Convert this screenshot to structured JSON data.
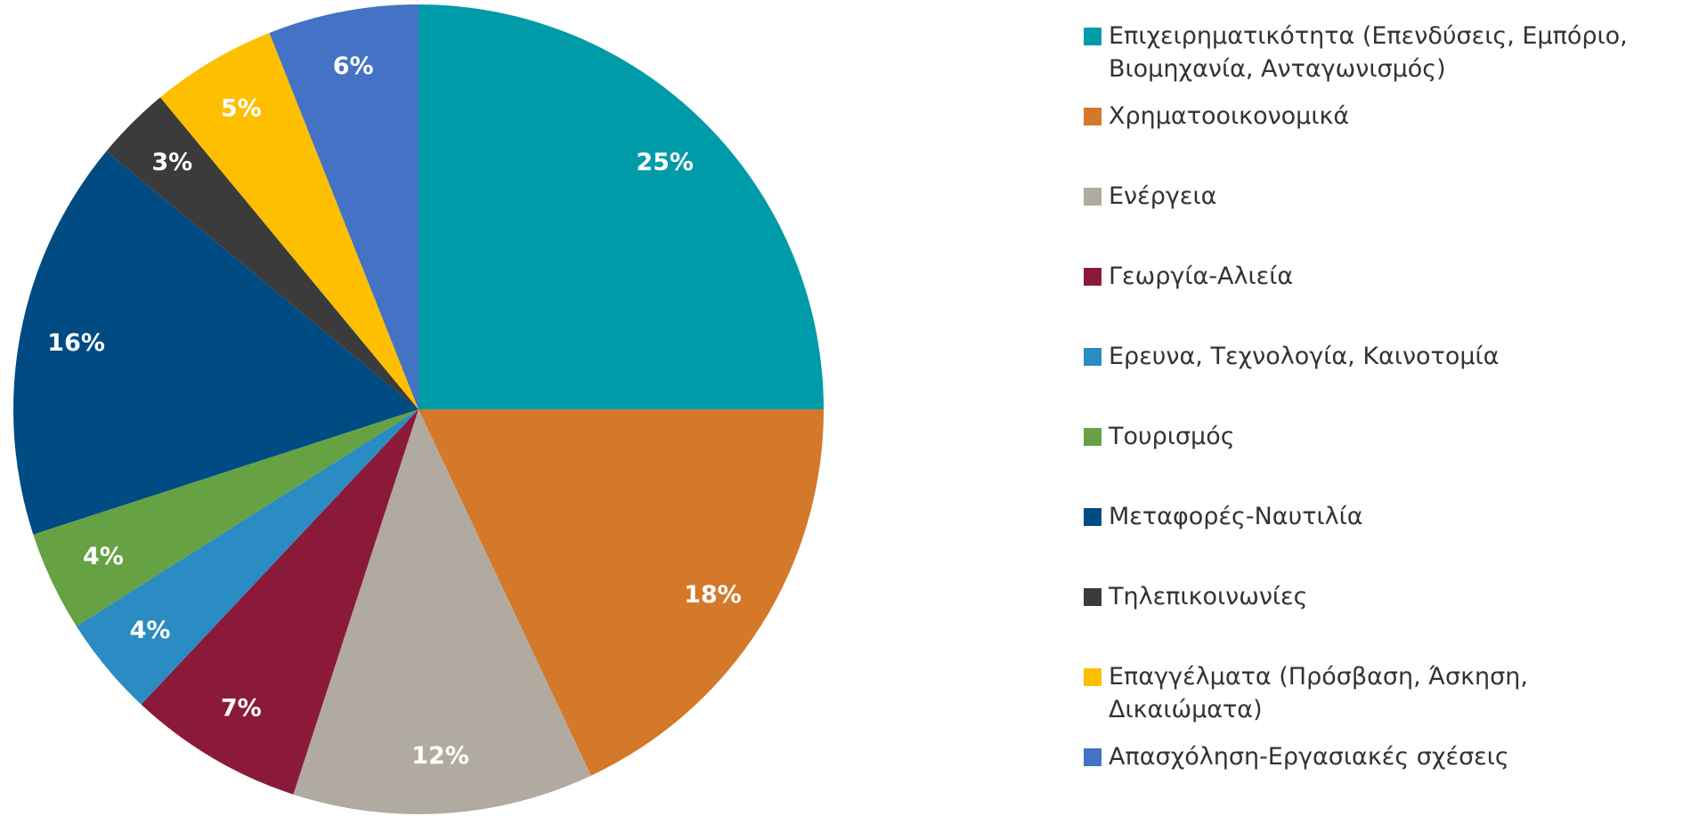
{
  "chart_data": {
    "type": "pie",
    "categories": [
      "Επιχειρηματικότητα (Επενδύσεις, Εμπόριο, Βιομηχανία, Ανταγωνισμός)",
      "Χρηματοοικονομικά",
      "Ενέργεια",
      "Γεωργία-Αλιεία",
      "Ερευνα, Τεχνολογία, Καινοτομία",
      "Τουρισμός",
      "Μεταφορές-Ναυτιλία",
      "Τηλεπικοινωνίες",
      "Επαγγέλματα (Πρόσβαση, Άσκηση, Δικαιώματα)",
      "Απασχόληση-Εργασιακές σχέσεις"
    ],
    "values": [
      25,
      18,
      12,
      7,
      4,
      4,
      16,
      3,
      5,
      6
    ],
    "value_labels": [
      "25%",
      "18%",
      "12%",
      "7%",
      "4%",
      "4%",
      "16%",
      "3%",
      "5%",
      "6%"
    ],
    "colors": [
      "#009ba8",
      "#d4782a",
      "#b1aaa0",
      "#8b1a3a",
      "#2b8bc3",
      "#66a143",
      "#004b83",
      "#3b3b3b",
      "#fdbf00",
      "#4472c4"
    ]
  }
}
